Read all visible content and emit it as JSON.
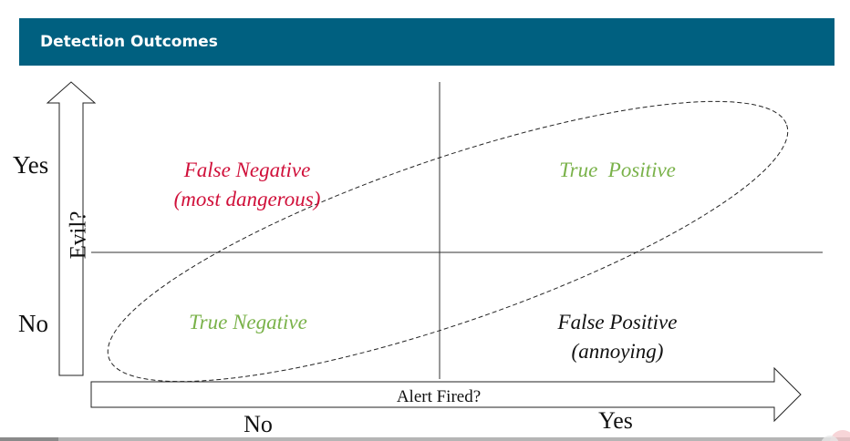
{
  "header": {
    "title": "Detection Outcomes"
  },
  "axes": {
    "y_label": "Evil?",
    "y_yes": "Yes",
    "y_no": "No",
    "x_label": "Alert Fired?",
    "x_no": "No",
    "x_yes": "Yes"
  },
  "quadrants": {
    "false_negative": {
      "line1": "False Negative",
      "line2": "(most dangerous)"
    },
    "true_positive": {
      "line1": "True  Positive"
    },
    "true_negative": {
      "line1": "True Negative"
    },
    "false_positive": {
      "line1": "False Positive",
      "line2": "(annoying)"
    }
  },
  "colors": {
    "header_bg": "#006080",
    "danger": "#d0103a",
    "good": "#7ab24a",
    "neutral": "#111111"
  }
}
